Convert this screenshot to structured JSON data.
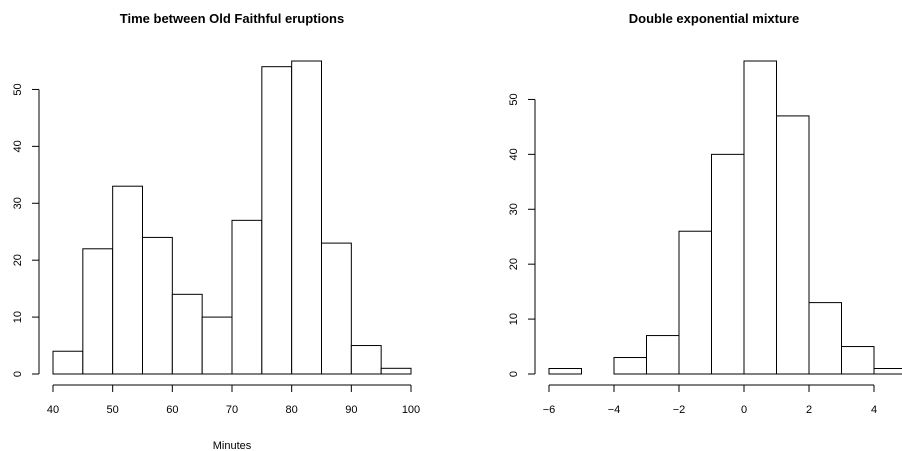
{
  "chart_data": [
    {
      "type": "bar",
      "title": "Time between Old Faithful eruptions",
      "xlabel": "Minutes",
      "ylabel": "",
      "bins": [
        [
          40,
          45
        ],
        [
          45,
          50
        ],
        [
          50,
          55
        ],
        [
          55,
          60
        ],
        [
          60,
          65
        ],
        [
          65,
          70
        ],
        [
          70,
          75
        ],
        [
          75,
          80
        ],
        [
          80,
          85
        ],
        [
          85,
          90
        ],
        [
          90,
          95
        ],
        [
          95,
          100
        ]
      ],
      "values": [
        4,
        22,
        33,
        24,
        14,
        10,
        27,
        54,
        55,
        23,
        5,
        1
      ],
      "xlim": [
        40,
        100
      ],
      "ylim": [
        0,
        55
      ],
      "xticks": [
        "40",
        "50",
        "60",
        "70",
        "80",
        "90",
        "100"
      ],
      "yticks": [
        "0",
        "10",
        "20",
        "30",
        "40",
        "50"
      ],
      "grid": false
    },
    {
      "type": "bar",
      "title": "Double exponential mixture",
      "xlabel": "",
      "ylabel": "",
      "bins": [
        [
          -6,
          -5
        ],
        [
          -5,
          -4
        ],
        [
          -4,
          -3
        ],
        [
          -3,
          -2
        ],
        [
          -2,
          -1
        ],
        [
          -1,
          0
        ],
        [
          0,
          1
        ],
        [
          1,
          2
        ],
        [
          2,
          3
        ],
        [
          3,
          4
        ],
        [
          4,
          5
        ]
      ],
      "values": [
        1,
        0,
        3,
        7,
        26,
        40,
        57,
        47,
        13,
        5,
        1
      ],
      "xlim": [
        -6,
        4
      ],
      "ylim": [
        0,
        57
      ],
      "xticks": [
        "−6",
        "−4",
        "−2",
        "0",
        "2",
        "4"
      ],
      "yticks": [
        "0",
        "10",
        "20",
        "30",
        "40",
        "50"
      ],
      "grid": false
    }
  ]
}
